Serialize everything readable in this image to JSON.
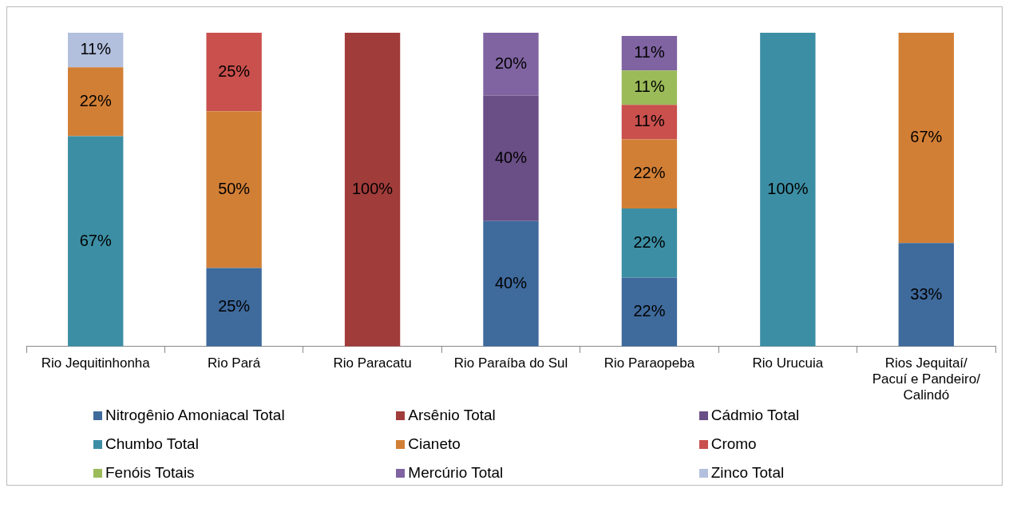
{
  "chart_data": {
    "type": "bar",
    "stacked": true,
    "data_labels": true,
    "legend": "bottom",
    "grid": false,
    "categories": [
      "Rio Jequitinhonha",
      "Rio Pará",
      "Rio Paracatu",
      "Rio Paraíba do Sul",
      "Rio Paraopeba",
      "Rio Urucuia",
      "Rios Jequitaí/ Pacuí e Pandeiro/ Calindó"
    ],
    "series": [
      {
        "name": "Nitrogênio Amoniacal Total",
        "color": "#3f6a9c",
        "values": [
          null,
          25,
          null,
          40,
          22,
          null,
          33
        ],
        "value_labels": [
          null,
          "25%",
          null,
          "40%",
          "22%",
          null,
          "33%"
        ]
      },
      {
        "name": "Arsênio Total",
        "color": "#a03c3a",
        "values": [
          null,
          null,
          100,
          null,
          null,
          null,
          null
        ],
        "value_labels": [
          null,
          null,
          "100%",
          null,
          null,
          null,
          null
        ]
      },
      {
        "name": "Cádmio Total",
        "color": "#6a4e86",
        "values": [
          null,
          null,
          null,
          40,
          null,
          null,
          null
        ],
        "value_labels": [
          null,
          null,
          null,
          "40%",
          null,
          null,
          null
        ]
      },
      {
        "name": "Chumbo Total",
        "color": "#3c8ea4",
        "values": [
          67,
          null,
          null,
          null,
          22,
          100,
          null
        ],
        "value_labels": [
          "67%",
          null,
          null,
          null,
          "22%",
          "100%",
          null
        ]
      },
      {
        "name": "Cianeto",
        "color": "#d27f36",
        "values": [
          22,
          50,
          null,
          null,
          22,
          null,
          67
        ],
        "value_labels": [
          "22%",
          "50%",
          null,
          null,
          "22%",
          null,
          "67%"
        ]
      },
      {
        "name": "Cromo",
        "color": "#c9504d",
        "values": [
          null,
          25,
          null,
          null,
          11,
          null,
          null
        ],
        "value_labels": [
          null,
          "25%",
          null,
          null,
          "11%",
          null,
          null
        ]
      },
      {
        "name": "Fenóis Totais",
        "color": "#9bbb59",
        "values": [
          null,
          null,
          null,
          null,
          11,
          null,
          null
        ],
        "value_labels": [
          null,
          null,
          null,
          null,
          "11%",
          null,
          null
        ]
      },
      {
        "name": "Mercúrio Total",
        "color": "#8064a2",
        "values": [
          null,
          null,
          null,
          20,
          11,
          null,
          null
        ],
        "value_labels": [
          null,
          null,
          null,
          "20%",
          "11%",
          null,
          null
        ]
      },
      {
        "name": "Zinco Total",
        "color": "#b2c0de",
        "values": [
          11,
          null,
          null,
          null,
          null,
          null,
          null
        ],
        "value_labels": [
          "11%",
          null,
          null,
          null,
          null,
          null,
          null
        ]
      }
    ]
  }
}
